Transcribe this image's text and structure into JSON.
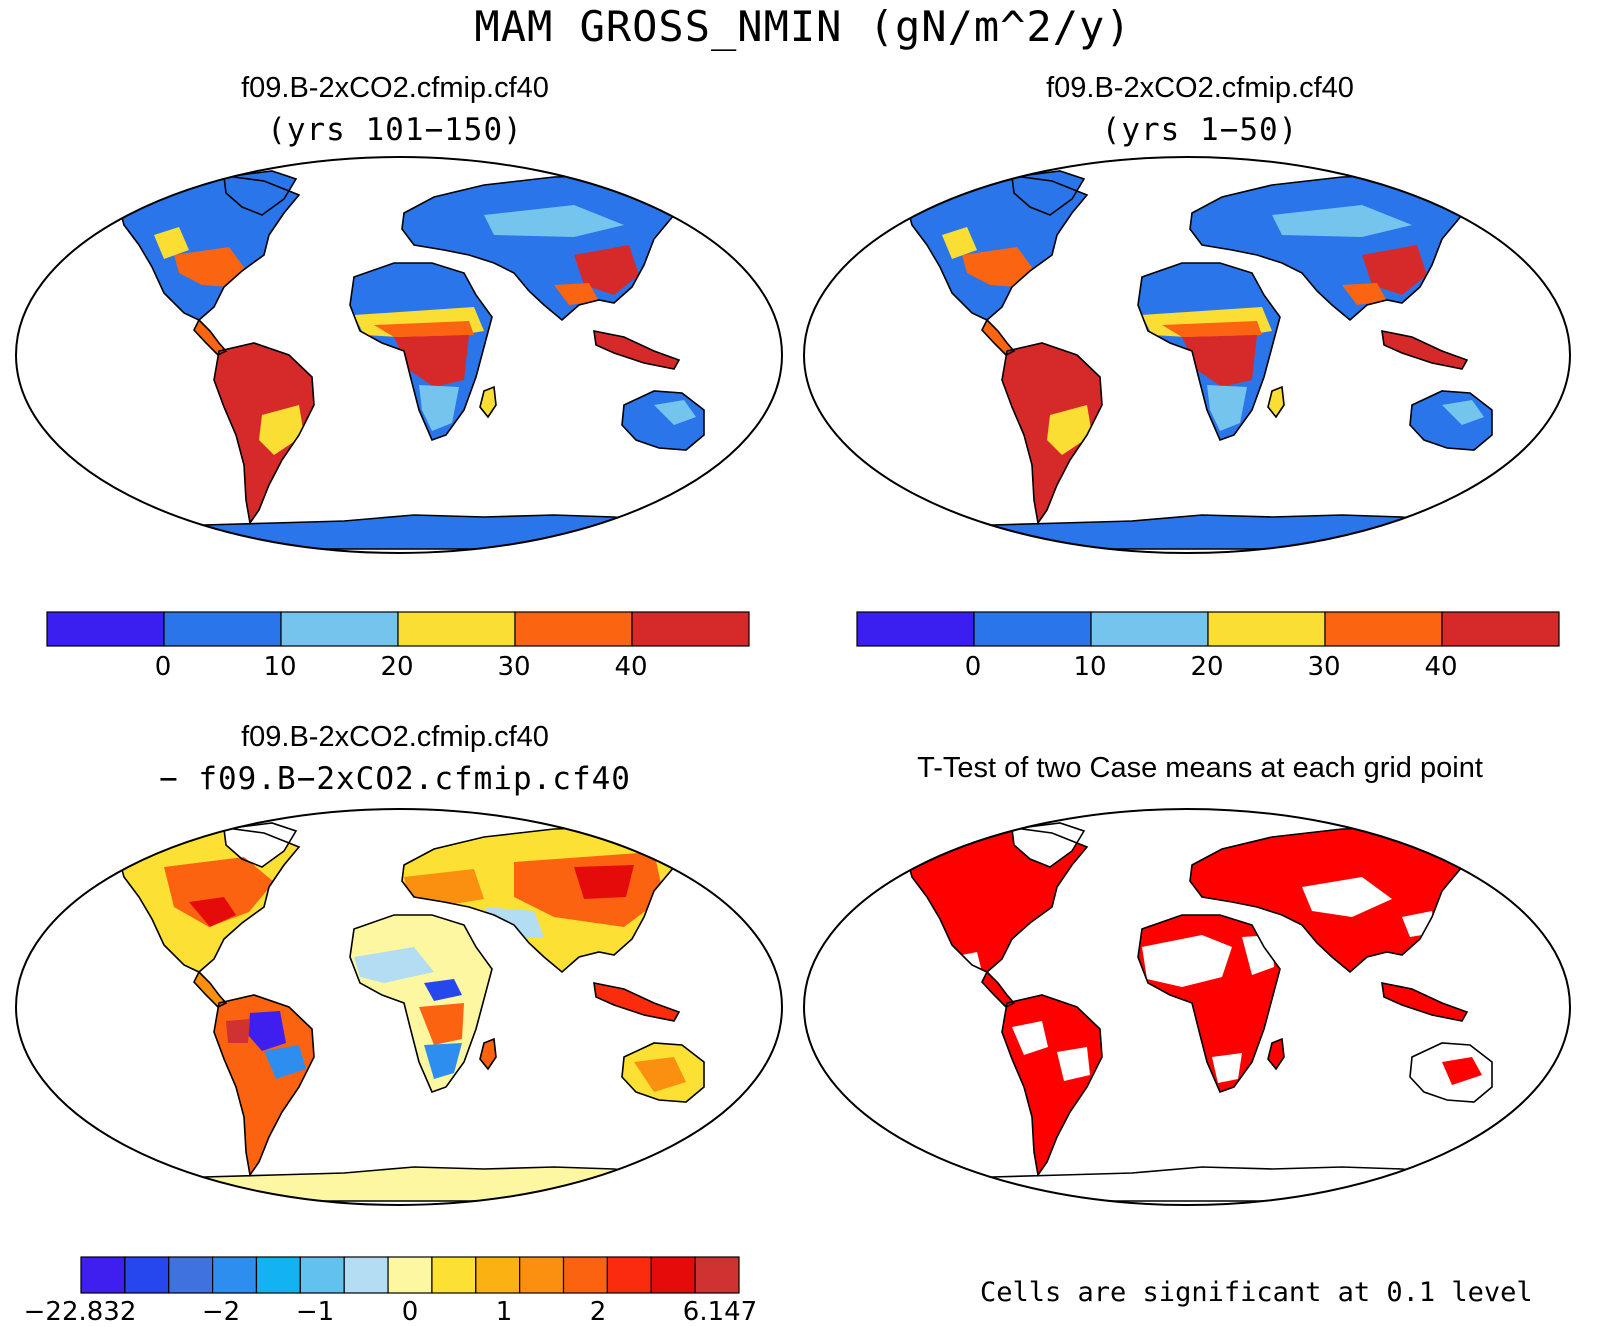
{
  "title": "MAM GROSS_NMIN (gN/m^2/y)",
  "panels": [
    {
      "id": "top-left",
      "title": "f09.B-2xCO2.cfmip.cf40",
      "subtitle": "(yrs 101−150)"
    },
    {
      "id": "top-right",
      "title": "f09.B-2xCO2.cfmip.cf40",
      "subtitle": "(yrs 1−50)"
    },
    {
      "id": "bottom-left",
      "title": "f09.B-2xCO2.cfmip.cf40",
      "subtitle": "− f09.B−2xCO2.cfmip.cf40"
    },
    {
      "id": "bottom-right",
      "title": "T-Test of two Case means at each grid point",
      "subtitle": ""
    }
  ],
  "colorbar_abs": {
    "colors": [
      "#3a1ff0",
      "#2a75ea",
      "#74c4ee",
      "#fbde33",
      "#fb6410",
      "#d62a2a"
    ],
    "tick_labels": [
      "0",
      "10",
      "20",
      "30",
      "40"
    ]
  },
  "colorbar_diff": {
    "colors": [
      "#3f1ff0",
      "#2747ee",
      "#3f72de",
      "#2e8ef0",
      "#13b3f2",
      "#62c1ee",
      "#b3ddf3",
      "#fef7a2",
      "#fde034",
      "#fbb111",
      "#fb8f0f",
      "#fb6310",
      "#fb2b0e",
      "#e50b0b",
      "#d03131"
    ],
    "tick_labels": [
      "−22.832",
      "−2",
      "−1",
      "0",
      "1",
      "2",
      "6.147"
    ]
  },
  "significance_note": "Cells are significant at 0.1 level",
  "significance_color": "#ff0000"
}
